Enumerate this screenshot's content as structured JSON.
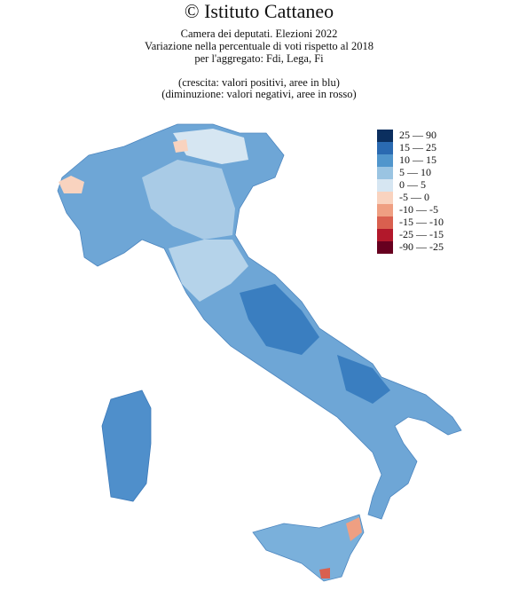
{
  "header": {
    "title": "© Istituto Cattaneo",
    "lines": [
      "Camera dei deputati. Elezioni 2022",
      "Variazione nella percentuale di voti rispetto al 2018",
      "per l'aggregato: Fdi, Lega, Fi"
    ],
    "notes": [
      "(crescita: valori positivi, aree in blu)",
      "(diminuzione: valori negativi, aree in rosso)"
    ]
  },
  "legend": {
    "items": [
      {
        "label": "25 — 90",
        "color": "#0b2f5f"
      },
      {
        "label": "15 — 25",
        "color": "#2a6ab1"
      },
      {
        "label": "10 — 15",
        "color": "#5196cc"
      },
      {
        "label": "5 — 10",
        "color": "#9ac4e2"
      },
      {
        "label": "0 — 5",
        "color": "#d6e6f2"
      },
      {
        "label": "-5 — 0",
        "color": "#f9d3bf"
      },
      {
        "label": "-10 — -5",
        "color": "#ef9f82"
      },
      {
        "label": "-15 — -10",
        "color": "#d9604f"
      },
      {
        "label": "-25 — -15",
        "color": "#b2182b"
      },
      {
        "label": "-90 — -25",
        "color": "#67001f"
      }
    ]
  }
}
